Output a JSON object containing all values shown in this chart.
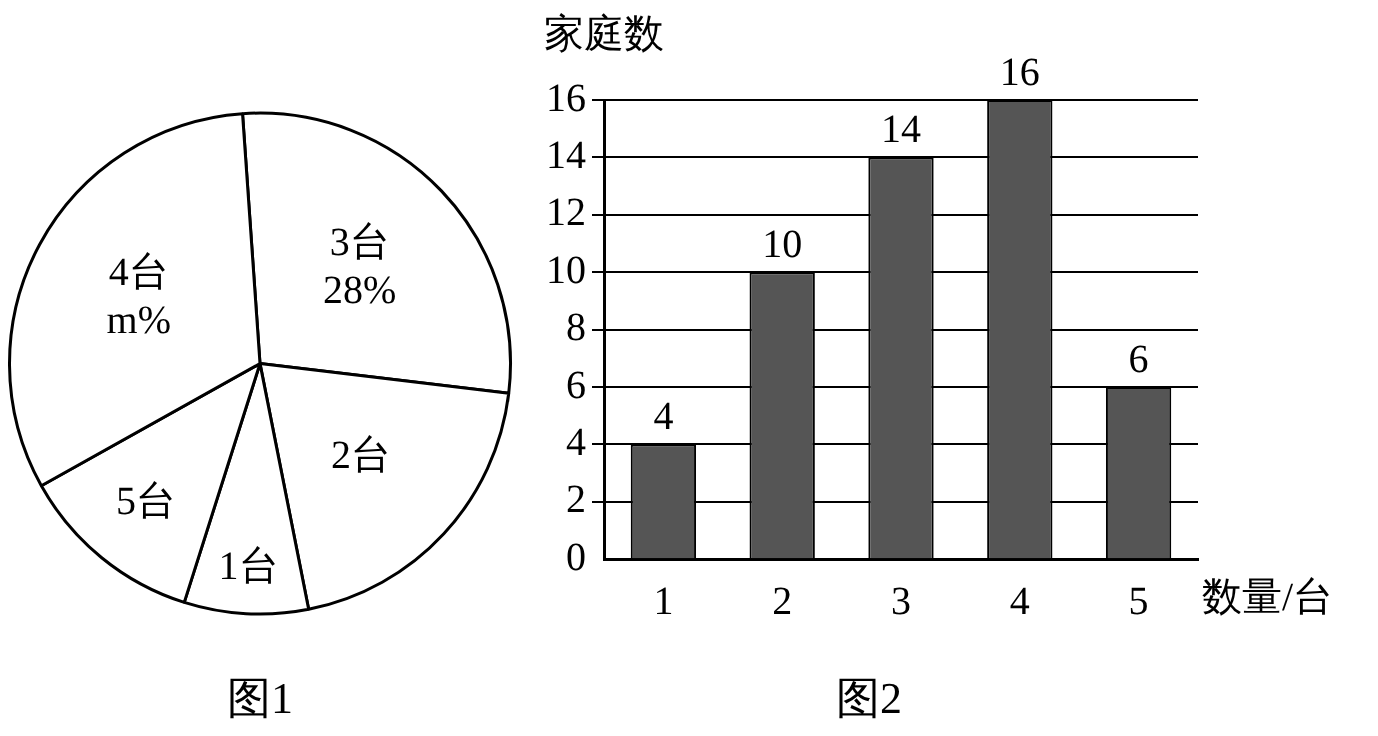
{
  "chart_data": [
    {
      "type": "pie",
      "title": "图1",
      "categories": [
        "3台",
        "2台",
        "1台",
        "5台",
        "4台"
      ],
      "values": [
        28,
        20,
        8,
        12,
        32
      ],
      "colors": [
        "#ffffff",
        "#ffffff",
        "#ffffff",
        "#ffffff",
        "#ffffff"
      ],
      "value_labels": [
        "28%",
        null,
        null,
        null,
        "m%"
      ]
    },
    {
      "type": "bar",
      "title": "图2",
      "xlabel": "数量/台",
      "ylabel": "家庭数",
      "categories": [
        "1",
        "2",
        "3",
        "4",
        "5"
      ],
      "values": [
        4,
        10,
        14,
        16,
        6
      ],
      "color": "#555555",
      "ylim": [
        0,
        16
      ],
      "yticks": [
        0,
        2,
        4,
        6,
        8,
        10,
        12,
        14,
        16
      ],
      "grid": "y",
      "data_labels": true
    }
  ]
}
